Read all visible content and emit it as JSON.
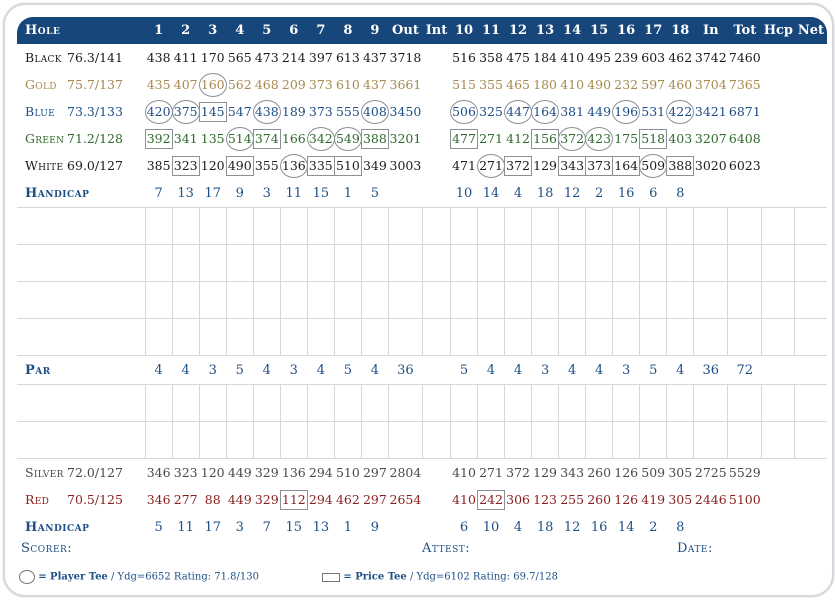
{
  "header": [
    "Hole",
    "",
    "1",
    "2",
    "3",
    "4",
    "5",
    "6",
    "7",
    "8",
    "9",
    "Out",
    "Int",
    "10",
    "11",
    "12",
    "13",
    "14",
    "15",
    "16",
    "17",
    "18",
    "In",
    "Tot",
    "Hcp",
    "Net"
  ],
  "tees": [
    {
      "name": "Black",
      "rating": "76.3/141",
      "color": "black",
      "front": [
        "438",
        "411",
        "170",
        "565",
        "473",
        "214",
        "397",
        "613",
        "437"
      ],
      "out": "3718",
      "back": [
        "516",
        "358",
        "475",
        "184",
        "410",
        "495",
        "239",
        "603",
        "462"
      ],
      "in": "3742",
      "tot": "7460",
      "marks": {}
    },
    {
      "name": "Gold",
      "rating": "75.7/137",
      "color": "gold",
      "front": [
        "435",
        "407",
        "160",
        "562",
        "468",
        "209",
        "373",
        "610",
        "437"
      ],
      "out": "3661",
      "back": [
        "515",
        "355",
        "465",
        "180",
        "410",
        "490",
        "232",
        "597",
        "460"
      ],
      "in": "3704",
      "tot": "7365",
      "marks": {
        "f2": "circle"
      }
    },
    {
      "name": "Blue",
      "rating": "73.3/133",
      "color": "blue",
      "front": [
        "420",
        "375",
        "145",
        "547",
        "438",
        "189",
        "373",
        "555",
        "408"
      ],
      "out": "3450",
      "back": [
        "506",
        "325",
        "447",
        "164",
        "381",
        "449",
        "196",
        "531",
        "422"
      ],
      "in": "3421",
      "tot": "6871",
      "marks": {
        "f0": "circle",
        "f1": "circle",
        "f2": "box",
        "f4": "circle",
        "f8": "circle",
        "b0": "circle",
        "b2": "circle",
        "b3": "circle",
        "b6": "circle",
        "b8": "circle"
      }
    },
    {
      "name": "Green",
      "rating": "71.2/128",
      "color": "green",
      "front": [
        "392",
        "341",
        "135",
        "514",
        "374",
        "166",
        "342",
        "549",
        "388"
      ],
      "out": "3201",
      "back": [
        "477",
        "271",
        "412",
        "156",
        "372",
        "423",
        "175",
        "518",
        "403"
      ],
      "in": "3207",
      "tot": "6408",
      "marks": {
        "f0": "box",
        "f3": "circle",
        "f4": "box",
        "f6": "circle",
        "f7": "circle",
        "f8": "box",
        "b0": "box",
        "b3": "box",
        "b4": "circle",
        "b5": "circle",
        "b7": "box"
      }
    },
    {
      "name": "White",
      "rating": "69.0/127",
      "color": "white",
      "front": [
        "385",
        "323",
        "120",
        "490",
        "355",
        "136",
        "335",
        "510",
        "349"
      ],
      "out": "3003",
      "back": [
        "471",
        "271",
        "372",
        "129",
        "343",
        "373",
        "164",
        "509",
        "388"
      ],
      "in": "3020",
      "tot": "6023",
      "marks": {
        "f1": "box",
        "f3": "box",
        "f5": "circle",
        "f6": "box",
        "f7": "box",
        "b1": "circle",
        "b2": "box",
        "b4": "box",
        "b5": "box",
        "b6": "box",
        "b7": "circle",
        "b8": "box"
      }
    }
  ],
  "handicap_top": {
    "label": "Handicap",
    "front": [
      "7",
      "13",
      "17",
      "9",
      "3",
      "11",
      "15",
      "1",
      "5"
    ],
    "back": [
      "10",
      "14",
      "4",
      "18",
      "12",
      "2",
      "16",
      "6",
      "8"
    ]
  },
  "par": {
    "label": "Par",
    "front": [
      "4",
      "4",
      "3",
      "5",
      "4",
      "3",
      "4",
      "5",
      "4"
    ],
    "out": "36",
    "back": [
      "5",
      "4",
      "4",
      "3",
      "4",
      "4",
      "3",
      "5",
      "4"
    ],
    "in": "36",
    "tot": "72"
  },
  "lower_tees": [
    {
      "name": "Silver",
      "rating": "72.0/127",
      "color": "silver",
      "front": [
        "346",
        "323",
        "120",
        "449",
        "329",
        "136",
        "294",
        "510",
        "297"
      ],
      "out": "2804",
      "back": [
        "410",
        "271",
        "372",
        "129",
        "343",
        "260",
        "126",
        "509",
        "305"
      ],
      "in": "2725",
      "tot": "5529",
      "marks": {}
    },
    {
      "name": "Red",
      "rating": "70.5/125",
      "color": "red",
      "front": [
        "346",
        "277",
        "88",
        "449",
        "329",
        "112",
        "294",
        "462",
        "297"
      ],
      "out": "2654",
      "back": [
        "410",
        "242",
        "306",
        "123",
        "255",
        "260",
        "126",
        "419",
        "305"
      ],
      "in": "2446",
      "tot": "5100",
      "marks": {
        "f5": "box",
        "b1": "box"
      }
    }
  ],
  "handicap_bottom": {
    "label": "Handicap",
    "front": [
      "5",
      "11",
      "17",
      "3",
      "7",
      "15",
      "13",
      "1",
      "9"
    ],
    "back": [
      "6",
      "10",
      "4",
      "18",
      "12",
      "16",
      "14",
      "2",
      "8"
    ]
  },
  "signatures": {
    "scorer": "Scorer:",
    "attest": "Attest:",
    "date": "Date:"
  },
  "legend": {
    "player_tee": "= Player Tee",
    "player_tee_detail": " / Ydg=6652  Rating: 71.8/130",
    "price_tee": "= Price Tee",
    "price_tee_detail": " / Ydg=6102  Rating: 69.7/128"
  },
  "colors": {
    "header_bg": "#17467a",
    "blue_text": "#1d4f86",
    "gold": "#a8894f",
    "green": "#2e6a2c",
    "red": "#8a1f1f"
  }
}
